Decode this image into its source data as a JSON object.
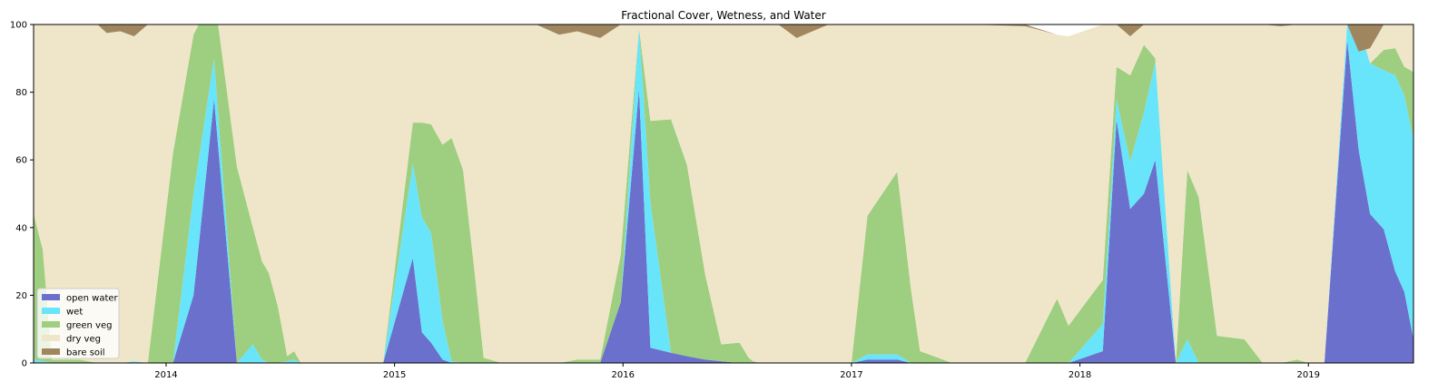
{
  "chart_data": {
    "type": "area",
    "stacked": true,
    "title": "Fractional Cover, Wetness, and Water",
    "xlabel": "",
    "ylabel": "",
    "xlim": [
      2013.42,
      2019.46
    ],
    "ylim": [
      0,
      100
    ],
    "x_ticks": [
      2014,
      2015,
      2016,
      2017,
      2018,
      2019
    ],
    "x_tick_labels": [
      "2014",
      "2015",
      "2016",
      "2017",
      "2018",
      "2019"
    ],
    "y_ticks": [
      0,
      20,
      40,
      60,
      80,
      100
    ],
    "y_tick_labels": [
      "0",
      "20",
      "40",
      "60",
      "80",
      "100"
    ],
    "grid": false,
    "legend_position": "lower-left",
    "x": [
      2013.42,
      2013.46,
      2013.5,
      2013.62,
      2013.7,
      2013.74,
      2013.8,
      2013.86,
      2013.92,
      2014.03,
      2014.12,
      2014.21,
      2014.31,
      2014.38,
      2014.42,
      2014.45,
      2014.49,
      2014.53,
      2014.56,
      2014.59,
      2014.62,
      2014.65,
      2014.72,
      2014.78,
      2014.95,
      2015.08,
      2015.12,
      2015.16,
      2015.21,
      2015.25,
      2015.3,
      2015.35,
      2015.39,
      2015.47,
      2015.56,
      2015.62,
      2015.72,
      2015.8,
      2015.9,
      2015.99,
      2016.07,
      2016.12,
      2016.21,
      2016.28,
      2016.36,
      2016.43,
      2016.51,
      2016.55,
      2016.57,
      2016.6,
      2016.64,
      2016.68,
      2016.76,
      2016.9,
      2016.95,
      2017.0,
      2017.07,
      2017.2,
      2017.26,
      2017.3,
      2017.44,
      2017.52,
      2017.76,
      2017.9,
      2017.95,
      2018.1,
      2018.16,
      2018.22,
      2018.28,
      2018.33,
      2018.42,
      2018.47,
      2018.52,
      2018.6,
      2018.72,
      2018.8,
      2018.88,
      2018.95,
      2019.0,
      2019.07,
      2019.17,
      2019.22,
      2019.27,
      2019.33,
      2019.38,
      2019.42,
      2019.46
    ],
    "series": [
      {
        "name": "open water",
        "color": "#6b70cc",
        "values": [
          0,
          0,
          0,
          0,
          0,
          0,
          0,
          0,
          0,
          0,
          20,
          78,
          0,
          0,
          0,
          0,
          0,
          0,
          0,
          0,
          0,
          0,
          0,
          0,
          0,
          31,
          9,
          6,
          1,
          0,
          0,
          0,
          0,
          0,
          0,
          0,
          0,
          0,
          0,
          18,
          81,
          4.5,
          3,
          2,
          1,
          0.5,
          0,
          0,
          0,
          0,
          0,
          0,
          0,
          0,
          0,
          0,
          1,
          1,
          0,
          0,
          0,
          0,
          0,
          0,
          0,
          3.5,
          72,
          45.5,
          50,
          60,
          0,
          0,
          0,
          0,
          0,
          0,
          0,
          0,
          0,
          0,
          95.5,
          63,
          44,
          39.5,
          27,
          21,
          7
        ]
      },
      {
        "name": "wet",
        "color": "#68e5fb",
        "values": [
          1,
          0.5,
          0,
          0,
          0,
          0,
          0,
          0.5,
          0,
          0,
          30,
          12,
          0,
          5.5,
          1,
          0,
          0,
          0.5,
          1,
          0,
          0,
          0,
          0,
          0,
          0,
          28,
          34,
          32.5,
          11.5,
          0.5,
          0,
          0,
          0,
          0,
          0,
          0,
          0,
          0,
          0,
          0,
          18,
          43,
          0,
          0,
          0,
          0,
          0,
          0,
          0,
          0,
          0,
          0,
          0,
          0,
          0,
          0,
          1.5,
          1.5,
          0,
          0,
          0,
          0,
          0,
          0,
          0,
          8,
          6,
          14,
          24,
          29,
          0,
          7,
          0,
          0,
          0,
          0,
          0,
          0,
          0,
          0,
          5,
          37,
          44.5,
          47,
          58,
          58,
          59
        ]
      },
      {
        "name": "green veg",
        "color": "#9ece7f",
        "values": [
          43,
          33,
          1,
          1,
          0,
          0,
          0,
          0,
          0,
          62,
          47,
          19,
          58,
          34.5,
          29,
          26.5,
          16.5,
          1.5,
          2.5,
          0,
          0,
          0,
          0,
          0,
          0,
          12,
          28,
          32,
          52,
          66,
          57,
          27,
          1.5,
          0,
          0,
          0,
          0,
          1,
          1,
          14,
          0,
          24,
          69,
          56.5,
          25,
          5,
          6,
          1.5,
          0.5,
          0,
          0,
          0,
          0,
          0,
          0,
          0,
          41,
          54,
          22,
          3.5,
          0,
          0,
          0,
          19,
          11,
          13,
          9.5,
          25.5,
          20,
          1,
          0,
          50,
          49,
          8,
          7,
          0,
          0,
          1,
          0,
          0,
          0,
          0,
          0,
          6,
          8,
          8.5,
          20
        ]
      },
      {
        "name": "dry veg",
        "color": "#efe6c9",
        "values": [
          56,
          66.5,
          99,
          99,
          100,
          97.5,
          98,
          96,
          100,
          38,
          3,
          -9,
          42,
          60,
          70,
          73.5,
          83.5,
          98,
          96.5,
          100,
          100,
          100,
          100,
          100,
          100,
          29,
          29,
          29.5,
          35.5,
          33.5,
          43,
          73,
          98.5,
          100,
          100,
          100,
          97,
          97,
          95,
          68,
          1,
          28.5,
          28,
          41.5,
          74,
          94.5,
          94,
          98.5,
          99.5,
          100,
          100,
          100,
          96,
          100,
          100,
          100,
          56.5,
          43.5,
          78,
          96.5,
          100,
          100,
          99.5,
          78,
          85.5,
          75.5,
          12.5,
          11.5,
          6,
          10,
          100,
          43,
          51,
          92,
          93,
          100,
          99.5,
          99,
          100,
          100,
          -0.5,
          -8,
          4.5,
          7.5,
          7,
          12.5,
          14
        ]
      },
      {
        "name": "bare soil",
        "color": "#a0865e",
        "values": [
          0,
          0,
          0,
          0,
          0,
          2.5,
          2,
          3.5,
          0,
          0,
          0,
          0,
          0,
          0,
          0,
          0,
          0,
          0,
          0,
          0,
          0,
          0,
          0,
          0,
          0,
          0,
          0,
          0,
          0,
          0,
          0,
          0,
          0,
          0,
          0,
          0,
          3,
          2,
          4,
          0,
          0,
          0,
          0,
          0,
          0,
          0,
          0,
          0,
          0,
          0,
          0,
          0,
          4,
          0,
          0,
          0,
          0,
          0,
          0,
          0,
          0,
          0,
          0.5,
          0,
          0,
          0,
          0,
          3.5,
          0,
          0,
          0,
          0,
          0,
          0,
          0,
          0,
          0.5,
          0,
          0,
          0,
          0,
          8,
          7,
          0,
          0,
          0,
          0
        ]
      }
    ]
  }
}
